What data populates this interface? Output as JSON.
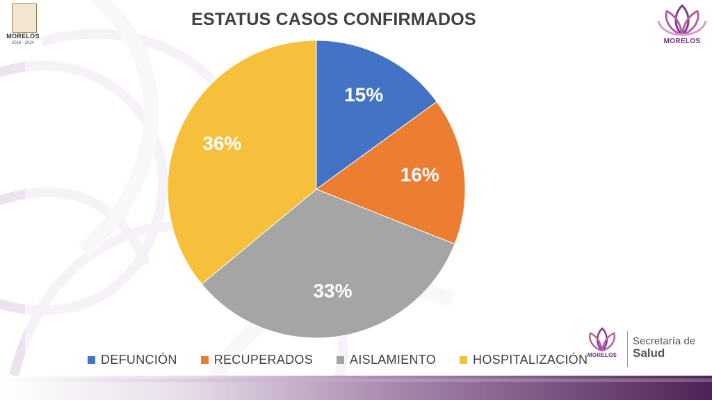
{
  "slide": {
    "top_left_logo": {
      "text": "MORELOS",
      "years": "2018 - 2024"
    },
    "top_right_logo": {
      "text": "MORELOS"
    },
    "bottom_logo": {
      "text": "MORELOS"
    },
    "department": {
      "line1": "Secretaría de",
      "line2": "Salud"
    }
  },
  "colors": {
    "defuncion": "#4472C4",
    "recuperados": "#ED7D31",
    "aislamiento": "#A5A5A5",
    "hospitalizacion": "#F6C03C",
    "brand_purple": "#6b2c7f"
  },
  "chart_data": {
    "type": "pie",
    "title": "ESTATUS CASOS CONFIRMADOS",
    "categories": [
      "DEFUNCIÓN",
      "RECUPERADOS",
      "AISLAMIENTO",
      "HOSPITALIZACIÓN"
    ],
    "values": [
      15,
      16,
      33,
      36
    ],
    "data_labels": [
      "15%",
      "16%",
      "33%",
      "36%"
    ],
    "legend_position": "bottom"
  }
}
